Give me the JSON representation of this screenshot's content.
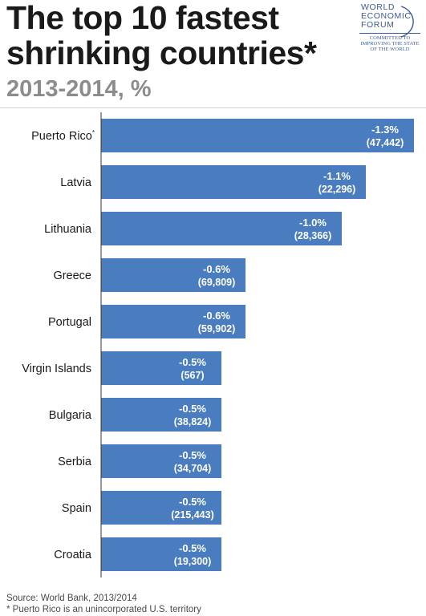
{
  "header": {
    "title_line1": "The top 10 fastest",
    "title_line2": "shrinking countries*",
    "subtitle": "2013-2014, %"
  },
  "logo": {
    "line1": "WORLD",
    "line2": "ECONOMIC",
    "line3": "FORUM",
    "tag1": "COMMITTED TO",
    "tag2": "IMPROVING THE STATE",
    "tag3": "OF THE WORLD"
  },
  "colors": {
    "bar": "#4a7cc0",
    "axis": "#333333",
    "label_text": "#ffffff"
  },
  "chart_data": {
    "type": "bar",
    "orientation": "horizontal",
    "title": "The top 10 fastest shrinking countries*",
    "subtitle": "2013-2014, %",
    "categories": [
      "Puerto Rico",
      "Latvia",
      "Lithuania",
      "Greece",
      "Portugal",
      "Virgin Islands",
      "Bulgaria",
      "Serbia",
      "Spain",
      "Croatia"
    ],
    "category_markers": [
      "*",
      "",
      "",
      "",
      "",
      "",
      "",
      "",
      "",
      ""
    ],
    "values": [
      -1.3,
      -1.1,
      -1.0,
      -0.6,
      -0.6,
      -0.5,
      -0.5,
      -0.5,
      -0.5,
      -0.5
    ],
    "value_labels": [
      "-1.3%",
      "-1.1%",
      "-1.0%",
      "-0.6%",
      "-0.6%",
      "-0.5%",
      "-0.5%",
      "-0.5%",
      "-0.5%",
      "-0.5%"
    ],
    "secondary_labels": [
      "(47,442)",
      "(22,296)",
      "(28,366)",
      "(69,809)",
      "(59,902)",
      "(567)",
      "(38,824)",
      "(34,704)",
      "(215,443)",
      "(19,300)"
    ],
    "xlim": [
      0,
      1.3
    ],
    "grid": false,
    "legend": "none"
  },
  "footer": {
    "source": "Source: World Bank, 2013/2014",
    "note": "* Puerto Rico is an unincorporated U.S. territory"
  }
}
